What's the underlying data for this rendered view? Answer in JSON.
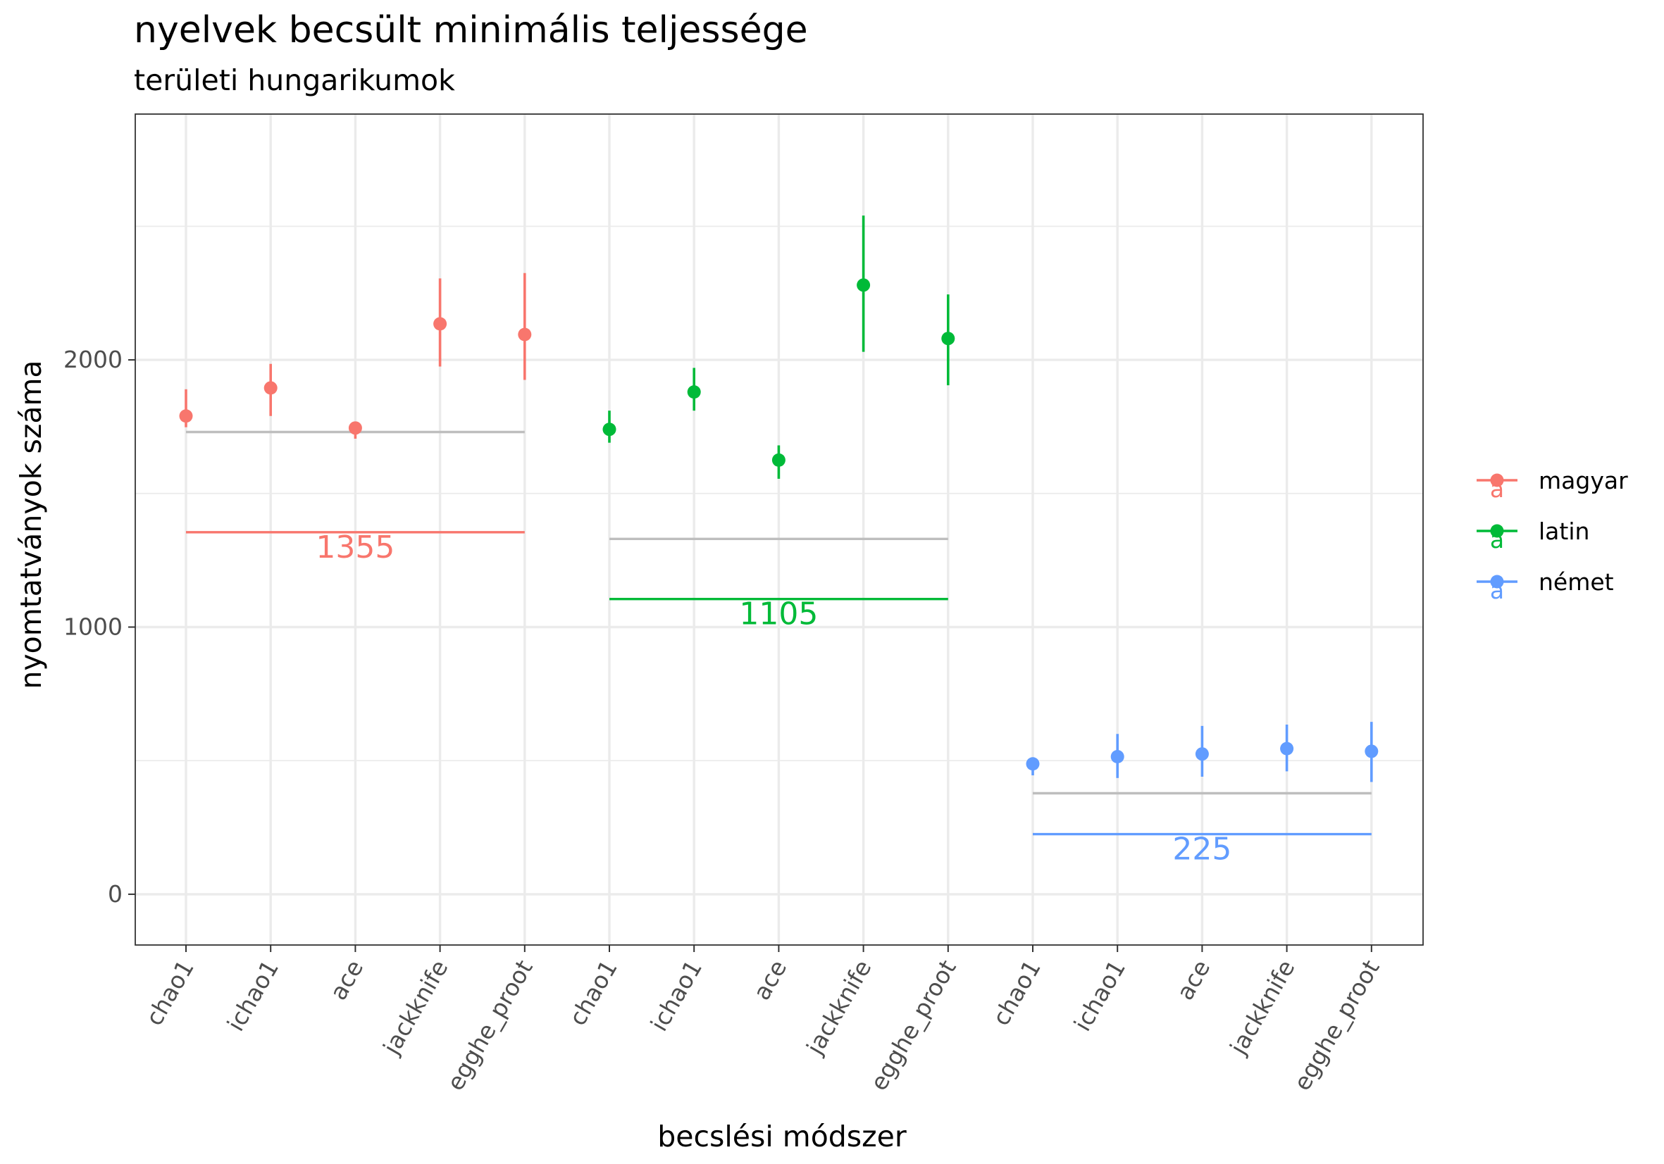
{
  "chart_data": {
    "type": "scatter",
    "title": "nyelvek becsült minimális teljessége",
    "subtitle": "területi hungarikumok",
    "xlabel": "becslési módszer",
    "ylabel": "nyomtatványok száma",
    "ylim": [
      -190,
      2920
    ],
    "yticks": [
      0,
      1000,
      2000
    ],
    "grid": true,
    "legend_position": "right",
    "categories": [
      "chao1",
      "ichao1",
      "ace",
      "jackknife",
      "egghe_proot",
      "chao1",
      "ichao1",
      "ace",
      "jackknife",
      "egghe_proot",
      "chao1",
      "ichao1",
      "ace",
      "jackknife",
      "egghe_proot"
    ],
    "series": [
      {
        "name": "magyar",
        "color": "#F8766D",
        "x_index": [
          0,
          1,
          2,
          3,
          4
        ],
        "values": [
          1790,
          1895,
          1745,
          2135,
          2095
        ],
        "lower": [
          1748,
          1790,
          1705,
          1975,
          1925
        ],
        "upper": [
          1890,
          1985,
          1765,
          2305,
          2325
        ],
        "observed": 1355,
        "observed_label": "1355",
        "reference": 1730
      },
      {
        "name": "latin",
        "color": "#00BA38",
        "x_index": [
          5,
          6,
          7,
          8,
          9
        ],
        "values": [
          1740,
          1880,
          1625,
          2280,
          2080
        ],
        "lower": [
          1690,
          1810,
          1555,
          2030,
          1905
        ],
        "upper": [
          1810,
          1970,
          1680,
          2540,
          2245
        ],
        "observed": 1105,
        "observed_label": "1105",
        "reference": 1330
      },
      {
        "name": "német",
        "color": "#619CFF",
        "x_index": [
          10,
          11,
          12,
          13,
          14
        ],
        "values": [
          488,
          515,
          525,
          545,
          535
        ],
        "lower": [
          445,
          435,
          440,
          460,
          420
        ],
        "upper": [
          505,
          600,
          630,
          635,
          645
        ],
        "observed": 225,
        "observed_label": "225",
        "reference": 378
      }
    ]
  }
}
